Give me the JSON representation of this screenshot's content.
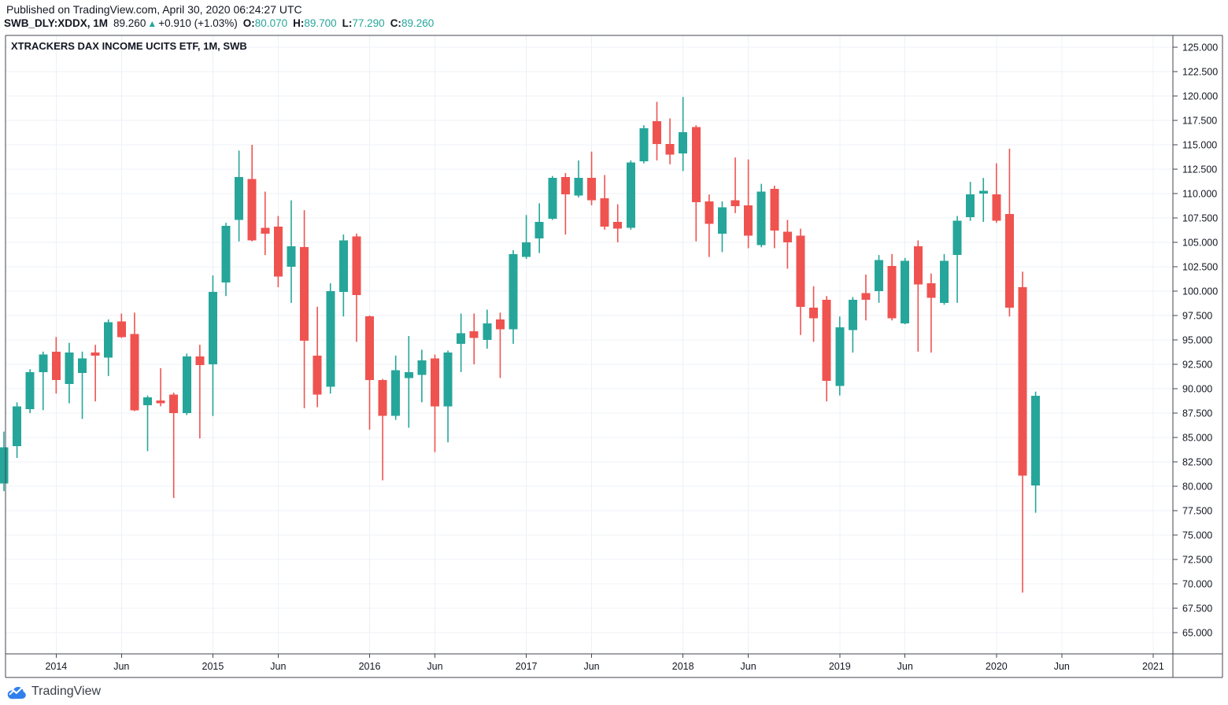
{
  "header": {
    "published_line": "Published on TradingView.com, April 30, 2020 06:24:27 UTC",
    "symbol": "SWB_DLY:XDDX, 1M",
    "last_price": "89.260",
    "direction_arrow": "▲",
    "change": "+0.910 (+1.03%)",
    "ohlc": [
      {
        "label": "O:",
        "value": "80.070"
      },
      {
        "label": "H:",
        "value": "89.700"
      },
      {
        "label": "L:",
        "value": "77.290"
      },
      {
        "label": "C:",
        "value": "89.260"
      }
    ]
  },
  "chart": {
    "title": "XTRACKERS DAX INCOME UCITS ETF, 1M, SWB"
  },
  "footer": {
    "brand": "TradingView"
  },
  "colors": {
    "up": "#26a69a",
    "down": "#ef5350",
    "grid": "#edf0f7",
    "border": "#434651",
    "text": "#131722",
    "logo_blue": "#2f80ed",
    "brand_text": "#3a3e47"
  },
  "chart_data": {
    "type": "candlestick",
    "title": "XTRACKERS DAX INCOME UCITS ETF, 1M, SWB",
    "symbol": "SWB_DLY:XDDX",
    "interval": "1M",
    "legend_position": "none",
    "grid": true,
    "y_axis": {
      "range": [
        65,
        125
      ],
      "tick_step": 2.5,
      "ticks": [
        {
          "label": "125.000",
          "value": 125.0
        },
        {
          "label": "122.500",
          "value": 122.5
        },
        {
          "label": "120.000",
          "value": 120.0
        },
        {
          "label": "117.500",
          "value": 117.5
        },
        {
          "label": "115.000",
          "value": 115.0
        },
        {
          "label": "112.500",
          "value": 112.5
        },
        {
          "label": "110.000",
          "value": 110.0
        },
        {
          "label": "107.500",
          "value": 107.5
        },
        {
          "label": "105.000",
          "value": 105.0
        },
        {
          "label": "102.500",
          "value": 102.5
        },
        {
          "label": "100.000",
          "value": 100.0
        },
        {
          "label": "97.500",
          "value": 97.5
        },
        {
          "label": "95.000",
          "value": 95.0
        },
        {
          "label": "92.500",
          "value": 92.5
        },
        {
          "label": "90.000",
          "value": 90.0
        },
        {
          "label": "87.500",
          "value": 87.5
        },
        {
          "label": "85.000",
          "value": 85.0
        },
        {
          "label": "82.500",
          "value": 82.5
        },
        {
          "label": "80.000",
          "value": 80.0
        },
        {
          "label": "77.500",
          "value": 77.5
        },
        {
          "label": "75.000",
          "value": 75.0
        },
        {
          "label": "72.500",
          "value": 72.5
        },
        {
          "label": "70.000",
          "value": 70.0
        },
        {
          "label": "67.500",
          "value": 67.5
        },
        {
          "label": "65.000",
          "value": 65.0
        }
      ]
    },
    "x_axis": {
      "first_candle_month": "2013-09",
      "ticks": [
        {
          "label": "2014",
          "month_index": 4
        },
        {
          "label": "Jun",
          "month_index": 9
        },
        {
          "label": "2015",
          "month_index": 16
        },
        {
          "label": "Jun",
          "month_index": 21
        },
        {
          "label": "2016",
          "month_index": 28
        },
        {
          "label": "Jun",
          "month_index": 33
        },
        {
          "label": "2017",
          "month_index": 40
        },
        {
          "label": "Jun",
          "month_index": 45
        },
        {
          "label": "2018",
          "month_index": 52
        },
        {
          "label": "Jun",
          "month_index": 57
        },
        {
          "label": "2019",
          "month_index": 64
        },
        {
          "label": "Jun",
          "month_index": 69
        },
        {
          "label": "2020",
          "month_index": 76
        },
        {
          "label": "Jun",
          "month_index": 81
        },
        {
          "label": "2021",
          "month_index": 88
        }
      ]
    },
    "candles": [
      {
        "t": "2013-09",
        "o": 80.3,
        "h": 85.6,
        "l": 79.5,
        "c": 84.0
      },
      {
        "t": "2013-10",
        "o": 84.1,
        "h": 88.6,
        "l": 82.9,
        "c": 88.2
      },
      {
        "t": "2013-11",
        "o": 87.9,
        "h": 92.0,
        "l": 87.5,
        "c": 91.7
      },
      {
        "t": "2013-12",
        "o": 91.7,
        "h": 93.8,
        "l": 87.8,
        "c": 93.5
      },
      {
        "t": "2014-01",
        "o": 93.8,
        "h": 95.3,
        "l": 89.5,
        "c": 90.9
      },
      {
        "t": "2014-02",
        "o": 90.5,
        "h": 94.7,
        "l": 88.5,
        "c": 93.7
      },
      {
        "t": "2014-03",
        "o": 91.6,
        "h": 93.8,
        "l": 86.9,
        "c": 93.1
      },
      {
        "t": "2014-04",
        "o": 93.7,
        "h": 94.5,
        "l": 88.7,
        "c": 93.4
      },
      {
        "t": "2014-05",
        "o": 93.2,
        "h": 97.1,
        "l": 91.3,
        "c": 96.8
      },
      {
        "t": "2014-06",
        "o": 96.9,
        "h": 97.7,
        "l": 95.2,
        "c": 95.3
      },
      {
        "t": "2014-07",
        "o": 95.6,
        "h": 97.8,
        "l": 87.7,
        "c": 87.8
      },
      {
        "t": "2014-08",
        "o": 88.3,
        "h": 89.3,
        "l": 83.6,
        "c": 89.1
      },
      {
        "t": "2014-09",
        "o": 88.8,
        "h": 92.1,
        "l": 88.2,
        "c": 88.5
      },
      {
        "t": "2014-10",
        "o": 89.4,
        "h": 89.6,
        "l": 78.8,
        "c": 87.5
      },
      {
        "t": "2014-11",
        "o": 87.5,
        "h": 93.6,
        "l": 87.3,
        "c": 93.3
      },
      {
        "t": "2014-12",
        "o": 93.3,
        "h": 94.5,
        "l": 84.9,
        "c": 92.4
      },
      {
        "t": "2015-01",
        "o": 92.5,
        "h": 101.6,
        "l": 87.2,
        "c": 99.9
      },
      {
        "t": "2015-02",
        "o": 100.9,
        "h": 107.0,
        "l": 99.5,
        "c": 106.7
      },
      {
        "t": "2015-03",
        "o": 107.3,
        "h": 114.4,
        "l": 105.1,
        "c": 111.7
      },
      {
        "t": "2015-04",
        "o": 111.5,
        "h": 115.0,
        "l": 105.1,
        "c": 105.2
      },
      {
        "t": "2015-05",
        "o": 106.5,
        "h": 110.2,
        "l": 103.7,
        "c": 105.9
      },
      {
        "t": "2015-06",
        "o": 106.6,
        "h": 107.7,
        "l": 100.4,
        "c": 101.5
      },
      {
        "t": "2015-07",
        "o": 102.5,
        "h": 109.3,
        "l": 98.8,
        "c": 104.6
      },
      {
        "t": "2015-08",
        "o": 104.5,
        "h": 108.3,
        "l": 88.0,
        "c": 94.9
      },
      {
        "t": "2015-09",
        "o": 93.4,
        "h": 98.4,
        "l": 88.1,
        "c": 89.4
      },
      {
        "t": "2015-10",
        "o": 90.2,
        "h": 100.8,
        "l": 89.5,
        "c": 100.0
      },
      {
        "t": "2015-11",
        "o": 99.9,
        "h": 105.8,
        "l": 97.4,
        "c": 105.2
      },
      {
        "t": "2015-12",
        "o": 105.6,
        "h": 105.9,
        "l": 94.8,
        "c": 99.6
      },
      {
        "t": "2016-01",
        "o": 97.4,
        "h": 97.5,
        "l": 85.8,
        "c": 90.9
      },
      {
        "t": "2016-02",
        "o": 90.9,
        "h": 91.0,
        "l": 80.6,
        "c": 87.2
      },
      {
        "t": "2016-03",
        "o": 87.2,
        "h": 93.4,
        "l": 86.8,
        "c": 91.9
      },
      {
        "t": "2016-04",
        "o": 91.1,
        "h": 95.4,
        "l": 86.0,
        "c": 91.7
      },
      {
        "t": "2016-05",
        "o": 91.4,
        "h": 94.0,
        "l": 88.6,
        "c": 92.9
      },
      {
        "t": "2016-06",
        "o": 93.1,
        "h": 93.5,
        "l": 83.5,
        "c": 88.2
      },
      {
        "t": "2016-07",
        "o": 88.2,
        "h": 93.9,
        "l": 84.5,
        "c": 93.7
      },
      {
        "t": "2016-08",
        "o": 94.6,
        "h": 97.7,
        "l": 91.7,
        "c": 95.7
      },
      {
        "t": "2016-09",
        "o": 95.9,
        "h": 97.7,
        "l": 92.5,
        "c": 95.2
      },
      {
        "t": "2016-10",
        "o": 95.0,
        "h": 98.1,
        "l": 94.1,
        "c": 96.7
      },
      {
        "t": "2016-11",
        "o": 97.1,
        "h": 97.8,
        "l": 91.1,
        "c": 96.1
      },
      {
        "t": "2016-12",
        "o": 96.1,
        "h": 104.2,
        "l": 94.6,
        "c": 103.8
      },
      {
        "t": "2017-01",
        "o": 103.5,
        "h": 107.8,
        "l": 103.3,
        "c": 105.0
      },
      {
        "t": "2017-02",
        "o": 105.4,
        "h": 109.0,
        "l": 103.9,
        "c": 107.1
      },
      {
        "t": "2017-03",
        "o": 107.4,
        "h": 111.8,
        "l": 107.3,
        "c": 111.6
      },
      {
        "t": "2017-04",
        "o": 111.7,
        "h": 112.1,
        "l": 105.8,
        "c": 109.9
      },
      {
        "t": "2017-05",
        "o": 109.8,
        "h": 113.4,
        "l": 109.6,
        "c": 111.6
      },
      {
        "t": "2017-06",
        "o": 111.6,
        "h": 114.3,
        "l": 108.8,
        "c": 109.3
      },
      {
        "t": "2017-07",
        "o": 109.5,
        "h": 111.9,
        "l": 106.3,
        "c": 106.6
      },
      {
        "t": "2017-08",
        "o": 107.1,
        "h": 108.9,
        "l": 105.0,
        "c": 106.4
      },
      {
        "t": "2017-09",
        "o": 106.5,
        "h": 113.4,
        "l": 106.3,
        "c": 113.2
      },
      {
        "t": "2017-10",
        "o": 113.3,
        "h": 117.0,
        "l": 113.1,
        "c": 116.7
      },
      {
        "t": "2017-11",
        "o": 117.4,
        "h": 119.4,
        "l": 113.4,
        "c": 115.1
      },
      {
        "t": "2017-12",
        "o": 115.1,
        "h": 117.7,
        "l": 113.0,
        "c": 114.0
      },
      {
        "t": "2018-01",
        "o": 114.1,
        "h": 119.9,
        "l": 112.3,
        "c": 116.3
      },
      {
        "t": "2018-02",
        "o": 116.8,
        "h": 117.0,
        "l": 105.1,
        "c": 109.1
      },
      {
        "t": "2018-03",
        "o": 109.2,
        "h": 109.9,
        "l": 103.5,
        "c": 106.9
      },
      {
        "t": "2018-04",
        "o": 105.9,
        "h": 109.2,
        "l": 104.0,
        "c": 108.6
      },
      {
        "t": "2018-05",
        "o": 109.3,
        "h": 113.7,
        "l": 108.0,
        "c": 108.7
      },
      {
        "t": "2018-06",
        "o": 108.8,
        "h": 113.5,
        "l": 104.4,
        "c": 105.7
      },
      {
        "t": "2018-07",
        "o": 104.7,
        "h": 111.0,
        "l": 104.5,
        "c": 110.2
      },
      {
        "t": "2018-08",
        "o": 110.5,
        "h": 110.8,
        "l": 104.4,
        "c": 106.2
      },
      {
        "t": "2018-09",
        "o": 106.1,
        "h": 107.3,
        "l": 102.3,
        "c": 105.0
      },
      {
        "t": "2018-10",
        "o": 105.7,
        "h": 106.4,
        "l": 95.5,
        "c": 98.4
      },
      {
        "t": "2018-11",
        "o": 98.3,
        "h": 100.5,
        "l": 94.8,
        "c": 97.2
      },
      {
        "t": "2018-12",
        "o": 99.1,
        "h": 99.5,
        "l": 88.7,
        "c": 90.8
      },
      {
        "t": "2019-01",
        "o": 90.3,
        "h": 97.4,
        "l": 89.3,
        "c": 96.3
      },
      {
        "t": "2019-02",
        "o": 96.0,
        "h": 99.4,
        "l": 93.7,
        "c": 99.1
      },
      {
        "t": "2019-03",
        "o": 99.8,
        "h": 101.7,
        "l": 97.0,
        "c": 99.1
      },
      {
        "t": "2019-04",
        "o": 100.0,
        "h": 103.7,
        "l": 98.8,
        "c": 103.2
      },
      {
        "t": "2019-05",
        "o": 102.6,
        "h": 103.8,
        "l": 97.0,
        "c": 97.2
      },
      {
        "t": "2019-06",
        "o": 96.7,
        "h": 103.4,
        "l": 96.6,
        "c": 103.1
      },
      {
        "t": "2019-07",
        "o": 104.6,
        "h": 105.2,
        "l": 93.8,
        "c": 100.7
      },
      {
        "t": "2019-08",
        "o": 100.8,
        "h": 101.8,
        "l": 93.7,
        "c": 99.3
      },
      {
        "t": "2019-09",
        "o": 98.8,
        "h": 103.8,
        "l": 98.6,
        "c": 103.1
      },
      {
        "t": "2019-10",
        "o": 103.7,
        "h": 107.7,
        "l": 98.8,
        "c": 107.2
      },
      {
        "t": "2019-11",
        "o": 107.6,
        "h": 111.2,
        "l": 107.2,
        "c": 109.9
      },
      {
        "t": "2019-12",
        "o": 110.0,
        "h": 111.6,
        "l": 107.1,
        "c": 110.3
      },
      {
        "t": "2020-01",
        "o": 109.9,
        "h": 113.1,
        "l": 107.0,
        "c": 107.2
      },
      {
        "t": "2020-02",
        "o": 107.9,
        "h": 114.6,
        "l": 97.4,
        "c": 98.3
      },
      {
        "t": "2020-03",
        "o": 100.4,
        "h": 102.0,
        "l": 69.1,
        "c": 81.1
      },
      {
        "t": "2020-04",
        "o": 80.07,
        "h": 89.7,
        "l": 77.29,
        "c": 89.26
      }
    ]
  }
}
